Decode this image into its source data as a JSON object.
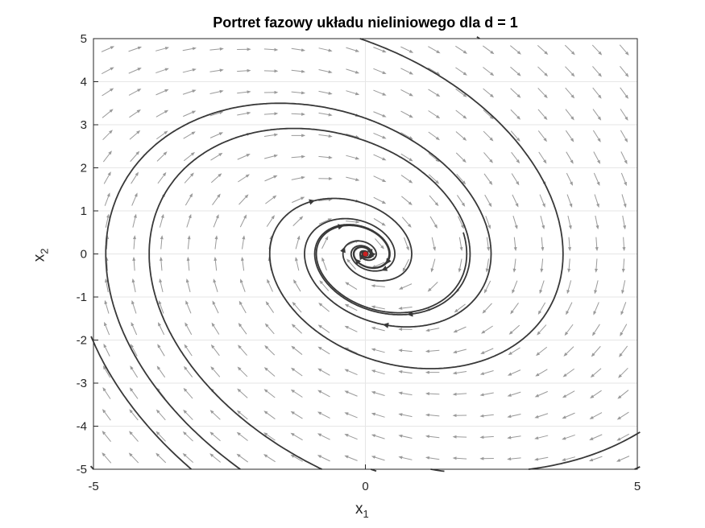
{
  "chart_data": {
    "type": "phase-portrait",
    "title": "Portret fazowy układu nieliniowego dla d = 1",
    "xlabel": {
      "base": "x",
      "sub": "1"
    },
    "ylabel": {
      "base": "x",
      "sub": "2"
    },
    "xlim": [
      -5,
      5
    ],
    "ylim": [
      -5,
      5
    ],
    "xticks": [
      -5,
      0,
      5
    ],
    "yticks": [
      -5,
      -4,
      -3,
      -2,
      -1,
      0,
      1,
      2,
      3,
      4,
      5
    ],
    "grid": true,
    "equilibrium": {
      "x": 0,
      "y": 0,
      "color": "#cc2020"
    },
    "vector_field": {
      "x": [
        -5,
        5
      ],
      "y": [
        -5,
        5
      ],
      "grid_count": 20,
      "color": "#9a9a9a"
    },
    "trajectory_color": "#383838",
    "trajectories": [
      {
        "start": [
          -0.8,
          -5
        ],
        "dir": "forward"
      },
      {
        "start": [
          -2.3,
          -5
        ],
        "dir": "forward"
      },
      {
        "start": [
          -0.1,
          5
        ],
        "dir": "forward"
      },
      {
        "start": [
          1.8,
          0.5
        ],
        "dir": "forward"
      },
      {
        "start": [
          0.1,
          -5
        ],
        "dir": "backward"
      },
      {
        "start": [
          2.1,
          5
        ],
        "dir": "backward"
      },
      {
        "start": [
          1.2,
          -5
        ],
        "dir": "backward"
      },
      {
        "start": [
          -3.2,
          -5
        ],
        "dir": "forward"
      },
      {
        "start": [
          3.0,
          -5
        ],
        "dir": "backward"
      },
      {
        "start": [
          -5.0,
          -5
        ],
        "dir": "forward"
      },
      {
        "start": [
          4.95,
          -5
        ],
        "dir": "backward"
      }
    ]
  }
}
